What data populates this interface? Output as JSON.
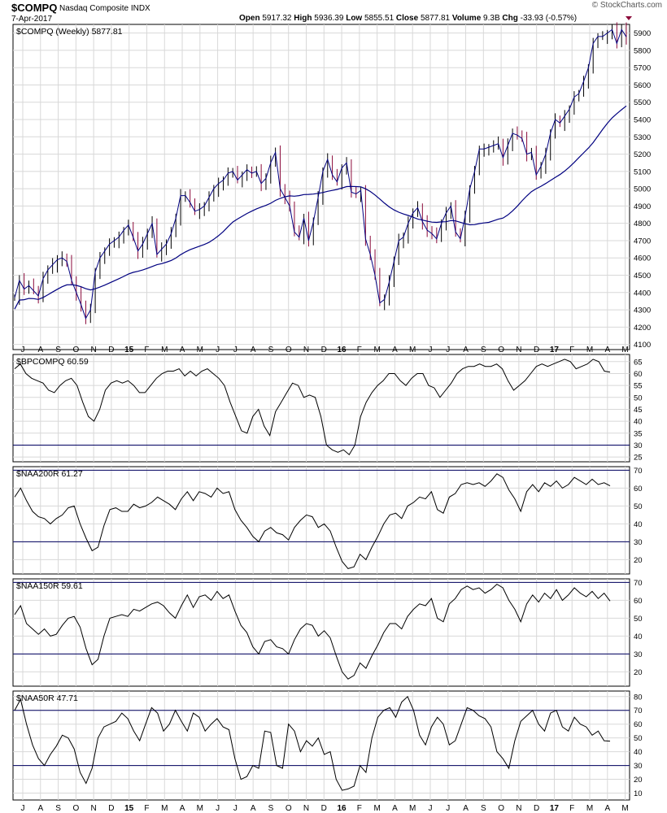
{
  "header": {
    "symbol": "$COMPQ",
    "name": "Nasdaq Composite INDX",
    "date": "7-Apr-2017",
    "open_label": "Open",
    "open": "5917.32",
    "high_label": "High",
    "high": "5936.39",
    "low_label": "Low",
    "low": "5855.51",
    "close_label": "Close",
    "close": "5877.81",
    "volume_label": "Volume",
    "volume": "9.3B",
    "chg_label": "Chg",
    "chg": "-33.93 (-0.57%)",
    "watermark": "© StockCharts.com"
  },
  "x_axis_labels": [
    "J",
    "A",
    "S",
    "O",
    "N",
    "D",
    "15",
    "F",
    "M",
    "A",
    "M",
    "J",
    "J",
    "A",
    "S",
    "O",
    "N",
    "D",
    "16",
    "F",
    "M",
    "A",
    "M",
    "J",
    "J",
    "A",
    "S",
    "O",
    "N",
    "D",
    "17",
    "F",
    "M",
    "A",
    "M"
  ],
  "chart_data": [
    {
      "type": "line",
      "id": "price",
      "legend": "$COMPQ (Weekly) 5877.81",
      "y_ticks": [
        4100,
        4200,
        4300,
        4400,
        4500,
        4600,
        4700,
        4800,
        4900,
        5000,
        5100,
        5200,
        5300,
        5400,
        5500,
        5600,
        5700,
        5800,
        5900
      ],
      "ylim": [
        4070,
        5950
      ],
      "grid": true,
      "colors": {
        "price": "#000080",
        "ma": "#000080",
        "up_bar": "#000000",
        "down_bar": "#8b0a3a"
      },
      "series": [
        {
          "values": [
            4370,
            4470,
            4420,
            4440,
            4410,
            4380,
            4480,
            4530,
            4560,
            4590,
            4600,
            4580,
            4470,
            4400,
            4330,
            4250,
            4300,
            4520,
            4600,
            4640,
            4680,
            4700,
            4720,
            4760,
            4790,
            4720,
            4640,
            4680,
            4740,
            4800,
            4620,
            4650,
            4680,
            4740,
            4830,
            4960,
            4960,
            4920,
            4870,
            4880,
            4900,
            4950,
            5000,
            5030,
            5050,
            5090,
            5100,
            5050,
            5080,
            5110,
            5090,
            5100,
            5030,
            5060,
            5150,
            5210,
            5000,
            4950,
            4900,
            4750,
            4720,
            4830,
            4700,
            4810,
            4950,
            5100,
            5170,
            5080,
            5040,
            5120,
            5150,
            4980,
            4970,
            4990,
            4710,
            4620,
            4500,
            4340,
            4360,
            4460,
            4580,
            4700,
            4720,
            4800,
            4860,
            4890,
            4810,
            4760,
            4740,
            4710,
            4800,
            4860,
            4900,
            4750,
            4710,
            4840,
            5000,
            5100,
            5230,
            5230,
            5240,
            5250,
            5260,
            5180,
            5250,
            5320,
            5310,
            5290,
            5200,
            5210,
            5080,
            5130,
            5200,
            5320,
            5400,
            5380,
            5420,
            5460,
            5530,
            5550,
            5620,
            5700,
            5840,
            5880,
            5880,
            5900,
            5920,
            5840,
            5920,
            5878
          ]
        },
        {
          "values": [
            null,
            null,
            null,
            null,
            null,
            null,
            null,
            null,
            null,
            null,
            null,
            null,
            null,
            null,
            null,
            null,
            null,
            null,
            null,
            null,
            null,
            null,
            null,
            null,
            null,
            null,
            null,
            null,
            null,
            null,
            null,
            null,
            null,
            null,
            null,
            null,
            null,
            null,
            null,
            null,
            null,
            null,
            null,
            null,
            null,
            null,
            null,
            null,
            null,
            null,
            null,
            null,
            null,
            null,
            null,
            null,
            null,
            null,
            null,
            null,
            null,
            null,
            null,
            null,
            null,
            null,
            null,
            null,
            null,
            null,
            null,
            null,
            null,
            null,
            null,
            null,
            null,
            null,
            null,
            null,
            null,
            null,
            null,
            null,
            null,
            null,
            null,
            null,
            null,
            null,
            null,
            null,
            null,
            null,
            null,
            null,
            null,
            null,
            null,
            null,
            null,
            null,
            null,
            null,
            null,
            null,
            null,
            null,
            null,
            null,
            null,
            null,
            null,
            null,
            null,
            null,
            null,
            null,
            null,
            null,
            null,
            null,
            null,
            null,
            null,
            null,
            null,
            null,
            null,
            null
          ]
        }
      ]
    },
    {
      "type": "line",
      "id": "bp",
      "legend": "$BPCOMPQ 60.59",
      "y_ticks": [
        25,
        30,
        35,
        40,
        45,
        50,
        55,
        60,
        65
      ],
      "ylim": [
        23,
        68
      ],
      "hlines": [
        30
      ],
      "values": [
        62,
        64,
        60,
        58,
        57,
        56,
        53,
        52,
        55,
        57,
        58,
        55,
        48,
        42,
        40,
        45,
        53,
        56,
        57,
        56,
        57,
        55,
        52,
        52,
        55,
        58,
        60,
        61,
        61,
        62,
        59,
        61,
        59,
        61,
        62,
        60,
        58,
        55,
        48,
        42,
        36,
        35,
        42,
        45,
        38,
        34,
        44,
        48,
        52,
        56,
        55,
        50,
        51,
        50,
        42,
        30,
        28,
        27,
        28,
        26,
        30,
        42,
        48,
        52,
        55,
        57,
        60,
        60,
        57,
        55,
        58,
        60,
        60,
        55,
        54,
        50,
        53,
        56,
        60,
        62,
        63,
        63,
        64,
        63,
        63,
        64,
        62,
        57,
        53,
        55,
        57,
        60,
        63,
        64,
        63,
        64,
        65,
        66,
        65,
        62,
        63,
        64,
        66,
        65,
        61,
        60.59
      ]
    },
    {
      "type": "line",
      "id": "naa200",
      "legend": "$NAA200R 61.27",
      "y_ticks": [
        20,
        30,
        40,
        50,
        60,
        70
      ],
      "ylim": [
        12,
        72
      ],
      "hlines": [
        30,
        70
      ],
      "values": [
        55,
        60,
        53,
        47,
        44,
        43,
        40,
        43,
        45,
        49,
        50,
        40,
        32,
        25,
        27,
        39,
        48,
        49,
        47,
        47,
        51,
        49,
        50,
        52,
        55,
        53,
        51,
        48,
        54,
        58,
        53,
        58,
        57,
        55,
        60,
        57,
        58,
        48,
        42,
        38,
        33,
        30,
        36,
        38,
        35,
        34,
        31,
        38,
        42,
        45,
        44,
        38,
        40,
        36,
        27,
        19,
        15,
        16,
        23,
        20,
        27,
        33,
        40,
        45,
        46,
        43,
        50,
        52,
        55,
        54,
        58,
        48,
        46,
        55,
        57,
        62,
        63,
        62,
        63,
        61,
        64,
        68,
        66,
        59,
        54,
        47,
        58,
        62,
        58,
        63,
        61,
        64,
        60,
        62,
        66,
        64,
        62,
        65,
        62,
        63,
        61.27
      ]
    },
    {
      "type": "line",
      "id": "naa150",
      "legend": "$NAA150R 59.61",
      "y_ticks": [
        20,
        30,
        40,
        50,
        60,
        70
      ],
      "ylim": [
        12,
        72
      ],
      "hlines": [
        30,
        70
      ],
      "values": [
        52,
        57,
        47,
        44,
        41,
        44,
        40,
        41,
        46,
        50,
        51,
        45,
        33,
        24,
        27,
        40,
        50,
        51,
        52,
        51,
        55,
        54,
        56,
        58,
        59,
        57,
        53,
        50,
        57,
        63,
        56,
        62,
        63,
        60,
        65,
        61,
        63,
        54,
        46,
        42,
        34,
        30,
        37,
        38,
        34,
        33,
        30,
        38,
        44,
        47,
        46,
        40,
        43,
        39,
        29,
        20,
        16,
        18,
        25,
        22,
        29,
        35,
        42,
        47,
        47,
        44,
        51,
        55,
        58,
        57,
        61,
        50,
        48,
        58,
        61,
        66,
        68,
        66,
        67,
        64,
        66,
        69,
        67,
        60,
        55,
        48,
        58,
        63,
        59,
        64,
        61,
        66,
        60,
        63,
        67,
        64,
        62,
        65,
        61,
        64,
        59.61
      ]
    },
    {
      "type": "line",
      "id": "naa50",
      "legend": "$NAA50R 47.71",
      "y_ticks": [
        10,
        20,
        30,
        40,
        50,
        60,
        70,
        80
      ],
      "ylim": [
        5,
        84
      ],
      "hlines": [
        30,
        70
      ],
      "values": [
        70,
        78,
        60,
        45,
        35,
        30,
        38,
        44,
        52,
        50,
        42,
        25,
        17,
        28,
        50,
        58,
        60,
        62,
        68,
        64,
        55,
        48,
        60,
        72,
        68,
        55,
        60,
        70,
        62,
        55,
        68,
        65,
        55,
        60,
        64,
        58,
        56,
        35,
        20,
        22,
        30,
        28,
        55,
        54,
        30,
        28,
        60,
        55,
        40,
        48,
        44,
        50,
        38,
        40,
        20,
        12,
        13,
        15,
        30,
        25,
        50,
        65,
        70,
        72,
        65,
        76,
        80,
        70,
        52,
        45,
        58,
        65,
        60,
        45,
        48,
        60,
        72,
        70,
        66,
        64,
        58,
        40,
        35,
        28,
        48,
        62,
        66,
        70,
        60,
        55,
        68,
        70,
        58,
        55,
        65,
        60,
        58,
        52,
        55,
        48,
        47.71
      ]
    }
  ]
}
